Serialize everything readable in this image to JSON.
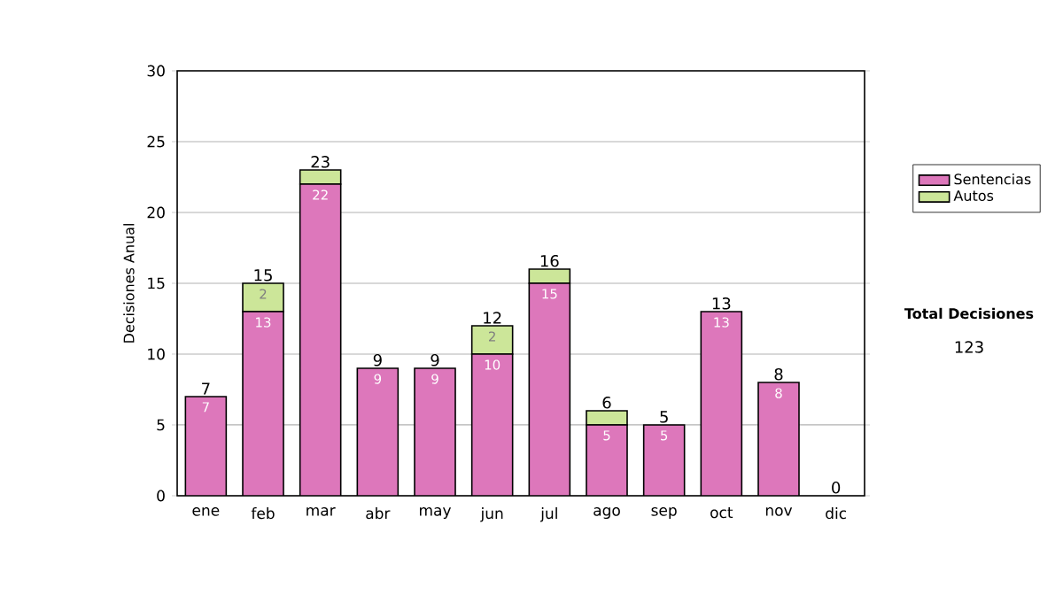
{
  "chart_data": {
    "type": "bar",
    "stacked": true,
    "ylabel": "Decisiones Anual",
    "categories": [
      "ene",
      "feb",
      "mar",
      "abr",
      "may",
      "jun",
      "jul",
      "ago",
      "sep",
      "oct",
      "nov",
      "dic"
    ],
    "series": [
      {
        "name": "Sentencias",
        "color": "#dd77bb",
        "values": [
          7,
          13,
          22,
          9,
          9,
          10,
          15,
          5,
          5,
          13,
          8,
          0
        ],
        "value_labels": [
          "7",
          "13",
          "22",
          "9",
          "9",
          "10",
          "15",
          "5",
          "5",
          "13",
          "8",
          null
        ]
      },
      {
        "name": "Autos",
        "color": "#cce699",
        "values": [
          0,
          2,
          1,
          0,
          0,
          2,
          1,
          1,
          0,
          0,
          0,
          0
        ],
        "value_labels": [
          null,
          "2",
          null,
          null,
          null,
          "2",
          null,
          null,
          null,
          null,
          null,
          null
        ]
      }
    ],
    "totals": [
      "7",
      "15",
      "23",
      "9",
      "9",
      "12",
      "16",
      "6",
      "5",
      "13",
      "8",
      "0"
    ],
    "ylim": [
      0,
      30
    ],
    "yticks": [
      0,
      5,
      10,
      15,
      20,
      25,
      30
    ],
    "grid": "y",
    "legend": "right",
    "annotations": [
      "Total Decisiones",
      "123"
    ]
  }
}
